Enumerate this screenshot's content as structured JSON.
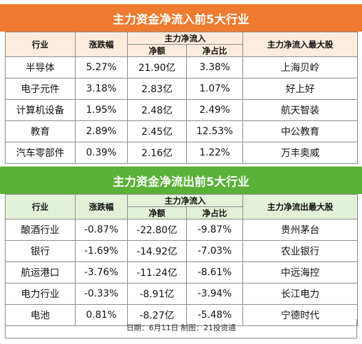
{
  "inflow": {
    "title": "主力资金净流入前5大行业",
    "headers": {
      "industry": "行业",
      "change": "涨跌幅",
      "group": "主力净流入",
      "net": "净额",
      "ratio": "净占比",
      "top_stock": "主力净流入最大股"
    },
    "rows": [
      {
        "industry": "半导体",
        "change": "5.27%",
        "net": "21.90亿",
        "ratio": "3.38%",
        "stock": "上海贝岭"
      },
      {
        "industry": "电子元件",
        "change": "3.18%",
        "net": "2.83亿",
        "ratio": "1.07%",
        "stock": "好上好"
      },
      {
        "industry": "计算机设备",
        "change": "1.95%",
        "net": "2.48亿",
        "ratio": "2.49%",
        "stock": "航天智装"
      },
      {
        "industry": "教育",
        "change": "2.89%",
        "net": "2.45亿",
        "ratio": "12.53%",
        "stock": "中公教育"
      },
      {
        "industry": "汽车零部件",
        "change": "0.39%",
        "net": "2.16亿",
        "ratio": "1.22%",
        "stock": "万丰奥威"
      }
    ]
  },
  "outflow": {
    "title": "主力资金净流出前5大行业",
    "headers": {
      "industry": "行业",
      "change": "涨跌幅",
      "group": "主力净流入",
      "net": "净额",
      "ratio": "净占比",
      "top_stock": "主力净流出最大股"
    },
    "rows": [
      {
        "industry": "酿酒行业",
        "change": "-0.87%",
        "net": "-22.80亿",
        "ratio": "-9.87%",
        "stock": "贵州茅台"
      },
      {
        "industry": "银行",
        "change": "-1.69%",
        "net": "-14.92亿",
        "ratio": "-7.03%",
        "stock": "农业银行"
      },
      {
        "industry": "航运港口",
        "change": "-3.76%",
        "net": "-11.24亿",
        "ratio": "-8.61%",
        "stock": "中远海控"
      },
      {
        "industry": "电力行业",
        "change": "-0.33%",
        "net": "-8.91亿",
        "ratio": "-3.94%",
        "stock": "长江电力"
      },
      {
        "industry": "电池",
        "change": "0.81%",
        "net": "-8.27亿",
        "ratio": "-5.48%",
        "stock": "宁德时代"
      }
    ]
  },
  "footer": "日期：6月11日 制图：21投资通",
  "colors": {
    "inflow": "#ee7b2f",
    "outflow": "#59b137"
  }
}
